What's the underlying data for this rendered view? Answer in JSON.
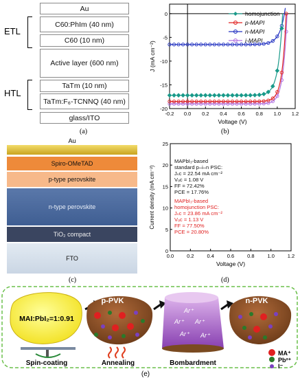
{
  "panel_a": {
    "caption": "(a)",
    "group_labels": {
      "etl": "ETL",
      "htl": "HTL"
    },
    "layers": [
      {
        "label": "Au",
        "color": "#f4f4f4"
      },
      {
        "label": "C60:PhIm (40 nm)",
        "color": "#a6cf7c"
      },
      {
        "label": "C60 (10 nm)",
        "color": "#d5ebc2"
      },
      {
        "label": "Active layer (600 nm)",
        "color": "#d6e4f5"
      },
      {
        "label": "TaTm (10 nm)",
        "color": "#f8d9c6"
      },
      {
        "label": "TaTm:F₆-TCNNQ (40 nm)",
        "color": "#f4b08a"
      },
      {
        "label": "glass/ITO",
        "color": "#f4f4f4"
      }
    ]
  },
  "panel_b": {
    "caption": "(b)",
    "chart_data": {
      "type": "line",
      "xlabel": "Voltage (V)",
      "ylabel": "J (mA cm⁻²)",
      "xlim": [
        -0.2,
        1.2
      ],
      "ylim": [
        -20,
        2
      ],
      "xticks": [
        "-0.2",
        "0.0",
        "0.2",
        "0.4",
        "0.6",
        "0.8",
        "1.0",
        "1.2"
      ],
      "yticks": [
        "-20",
        "-15",
        "-10",
        "-5",
        "0"
      ],
      "legend_position": "top-right",
      "series": [
        {
          "name": "homojunction",
          "color": "#1a9a8a",
          "marker": "diamond",
          "jsc": -17.2,
          "voc": 1.06,
          "n": 0.05
        },
        {
          "name": "p-MAPI",
          "color": "#e02020",
          "marker": "circle",
          "jsc": -18.5,
          "voc": 1.1,
          "n": 0.045
        },
        {
          "name": "n-MAPI",
          "color": "#2030c0",
          "marker": "circle",
          "jsc": -6.5,
          "voc": 1.08,
          "n": 0.06
        },
        {
          "name": "i-MAPI",
          "color": "#b070e0",
          "marker": "circle",
          "jsc": -19.0,
          "voc": 1.11,
          "n": 0.045
        }
      ]
    }
  },
  "panel_c": {
    "caption": "(c)",
    "layers": [
      {
        "label": "Au",
        "color": "#d8b830"
      },
      {
        "label": "Spiro-OMeTAD",
        "color": "#ee8a3a"
      },
      {
        "label": "p-type perovskite",
        "color": "#f7b98a"
      },
      {
        "label": "n-type perovskite",
        "color": "#4a6aa0"
      },
      {
        "label": "TiO₂ compact",
        "color": "#3a4560"
      },
      {
        "label": "FTO",
        "color": "#d8e2ee"
      }
    ]
  },
  "panel_d": {
    "caption": "(d)",
    "chart_data": {
      "type": "line",
      "xlabel": "Voltage (V)",
      "ylabel": "Current density (mA cm⁻²)",
      "xlim": [
        0.0,
        1.2
      ],
      "ylim": [
        0,
        25
      ],
      "xticks": [
        "0.0",
        "0.2",
        "0.4",
        "0.6",
        "0.8",
        "1.0",
        "1.2"
      ],
      "yticks": [
        "0",
        "5",
        "10",
        "15",
        "20",
        "25"
      ],
      "series": [
        {
          "name": "MAPbI₃-based standard p–i–n PSC",
          "color": "#111111",
          "jsc": 22.54,
          "voc": 1.08,
          "n": 0.05
        },
        {
          "name": "MAPbI₃-based homojunction PSC",
          "color": "#e02020",
          "jsc": 23.86,
          "voc": 1.13,
          "n": 0.045
        }
      ],
      "annotations": {
        "black": [
          "MAPbI₃-based",
          "standard p–i–n PSC:",
          "Jₛc = 22.54 mA cm⁻²",
          "Vₒc = 1.08 V",
          "FF = 72.42%",
          "PCE = 17.76%"
        ],
        "red": [
          "MAPbI₃-based",
          "homojunction PSC:",
          "Jₛc = 23.86 mA cm⁻²",
          "Vₒc = 1.13 V",
          "FF = 77.50%",
          "PCE = 20.80%"
        ]
      }
    }
  },
  "panel_e": {
    "caption": "(e)",
    "solution_label": "MAI:PbI₂=1:0.91",
    "steps": [
      "Spin-coating",
      "Annealing",
      "Bombardment"
    ],
    "films": [
      "p-PVK",
      "n-PVK"
    ],
    "ion_label": "Ar⁺",
    "legend": [
      {
        "label": "MA⁺",
        "color": "#e02020"
      },
      {
        "label": "Pb²⁺",
        "color": "#2a7a2a"
      },
      {
        "label": "I⁻",
        "color": "#7a40c0"
      }
    ]
  }
}
